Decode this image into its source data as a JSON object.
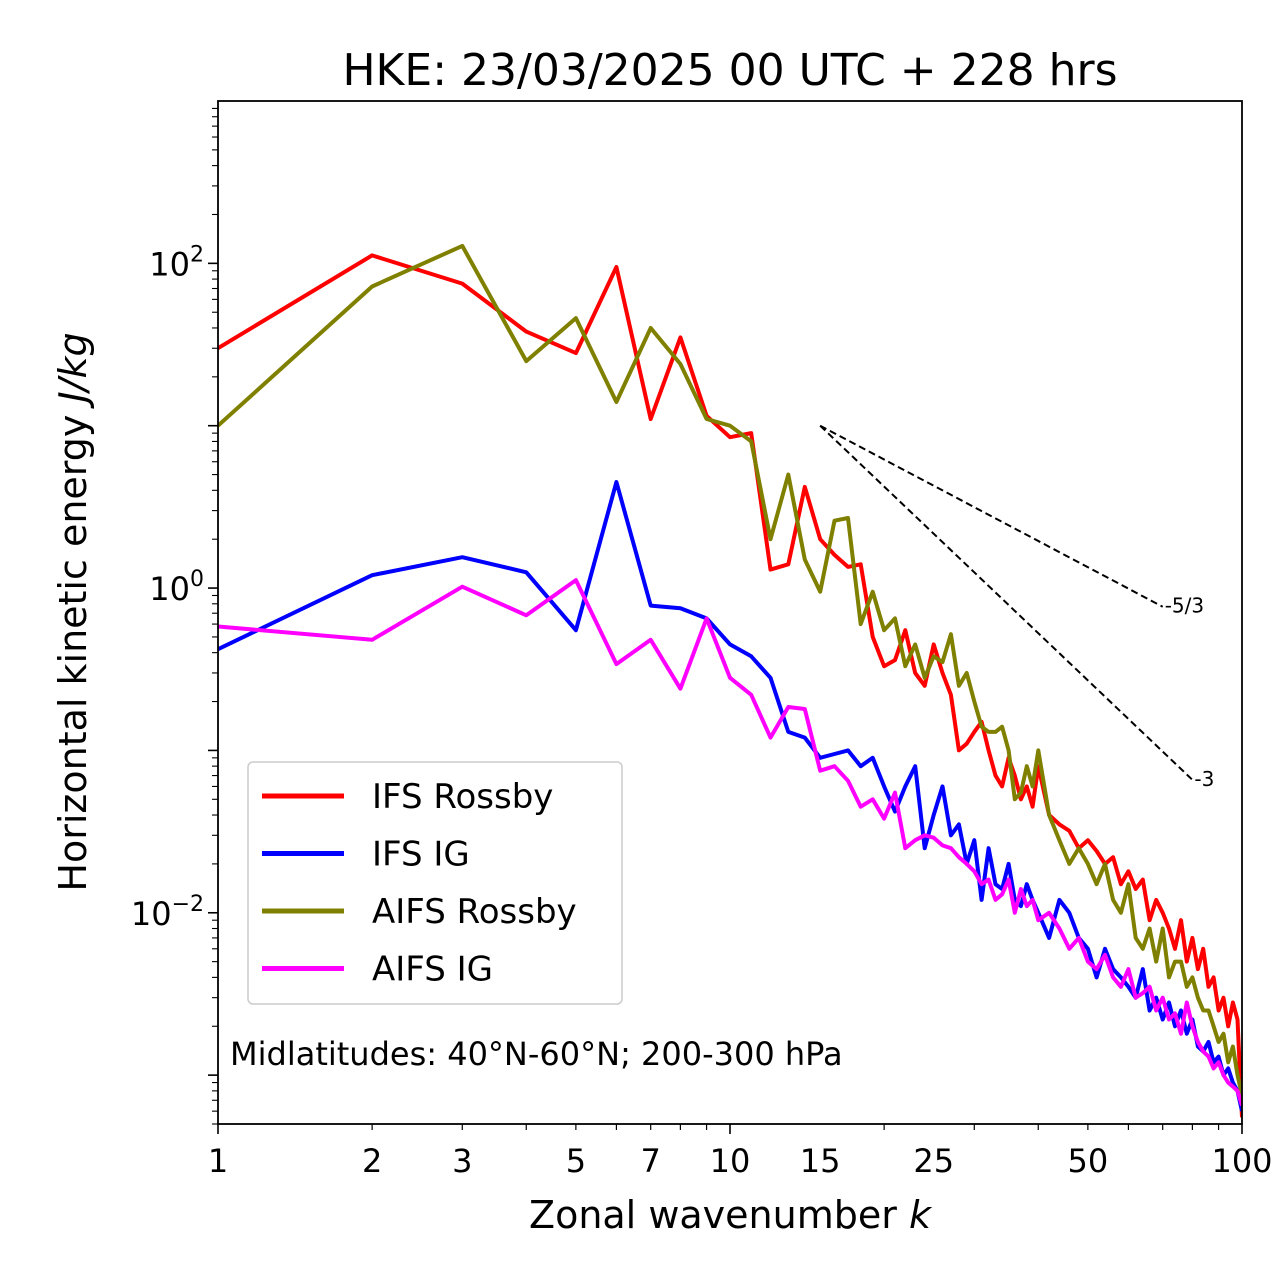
{
  "chart_data": {
    "type": "line",
    "title": "HKE: 23/03/2025 00 UTC + 228 hrs",
    "xlabel": "Zonal wavenumber k",
    "xlabel_main": "Zonal wavenumber ",
    "xlabel_var": "k",
    "ylabel_main": "Horizontal kinetic energy ",
    "ylabel_unit": "J/kg",
    "xscale": "log",
    "yscale": "log",
    "xlim": [
      1,
      100
    ],
    "ylim": [
      0.0005,
      1000
    ],
    "x_ticks": [
      1,
      2,
      3,
      5,
      7,
      10,
      15,
      25,
      50,
      100
    ],
    "x_tick_labels": [
      "1",
      "2",
      "3",
      "5",
      "7",
      "10",
      "15",
      "25",
      "50",
      "100"
    ],
    "y_ticks": [
      {
        "value": 100,
        "base": "10",
        "exp": "2"
      },
      {
        "value": 1,
        "base": "10",
        "exp": "0"
      },
      {
        "value": 0.01,
        "base": "10",
        "exp": "−2"
      }
    ],
    "annotation": "Midlatitudes: 40°N-60°N; 200-300 hPa",
    "legend_position": "lower-left",
    "reference_slopes": [
      {
        "label": "-5/3",
        "slope": -1.6667,
        "x_start": 15,
        "x_end": 70,
        "y_start": 10.0
      },
      {
        "label": "-3",
        "slope": -3,
        "x_start": 15,
        "x_end": 80,
        "y_start": 10.0
      }
    ],
    "series": [
      {
        "name": "IFS Rossby",
        "color": "#ff0000",
        "x": [
          1,
          2,
          3,
          4,
          5,
          6,
          7,
          8,
          9,
          10,
          11,
          12,
          13,
          14,
          15,
          16,
          17,
          18,
          19,
          20,
          21,
          22,
          23,
          24,
          25,
          26,
          27,
          28,
          29,
          30,
          31,
          32,
          33,
          34,
          35,
          36,
          37,
          38,
          39,
          40,
          42,
          44,
          46,
          48,
          50,
          52,
          54,
          56,
          58,
          60,
          62,
          64,
          66,
          68,
          70,
          72,
          74,
          76,
          78,
          80,
          82,
          84,
          86,
          88,
          90,
          92,
          94,
          96,
          98,
          100
        ],
        "y": [
          30,
          112,
          75,
          38,
          28,
          95,
          11,
          35,
          11.5,
          8.5,
          9,
          1.3,
          1.4,
          4.2,
          2,
          1.6,
          1.35,
          1.4,
          0.5,
          0.33,
          0.36,
          0.55,
          0.3,
          0.25,
          0.45,
          0.3,
          0.22,
          0.1,
          0.11,
          0.13,
          0.15,
          0.1,
          0.07,
          0.06,
          0.09,
          0.07,
          0.05,
          0.06,
          0.045,
          0.08,
          0.04,
          0.035,
          0.032,
          0.025,
          0.028,
          0.024,
          0.02,
          0.022,
          0.015,
          0.018,
          0.014,
          0.016,
          0.009,
          0.012,
          0.01,
          0.008,
          0.006,
          0.009,
          0.005,
          0.007,
          0.0045,
          0.006,
          0.0035,
          0.004,
          0.0025,
          0.003,
          0.002,
          0.0028,
          0.0022,
          0.00055
        ]
      },
      {
        "name": "IFS IG",
        "color": "#0000ff",
        "x": [
          1,
          2,
          3,
          4,
          5,
          6,
          7,
          8,
          9,
          10,
          11,
          12,
          13,
          14,
          15,
          16,
          17,
          18,
          19,
          20,
          21,
          22,
          23,
          24,
          25,
          26,
          27,
          28,
          29,
          30,
          31,
          32,
          33,
          34,
          35,
          36,
          37,
          38,
          39,
          40,
          42,
          44,
          46,
          48,
          50,
          52,
          54,
          56,
          58,
          60,
          62,
          64,
          66,
          68,
          70,
          72,
          74,
          76,
          78,
          80,
          82,
          84,
          86,
          88,
          90,
          92,
          94,
          96,
          98,
          100
        ],
        "y": [
          0.42,
          1.2,
          1.55,
          1.25,
          0.55,
          4.5,
          0.78,
          0.75,
          0.65,
          0.45,
          0.38,
          0.28,
          0.13,
          0.12,
          0.09,
          0.095,
          0.1,
          0.08,
          0.09,
          0.06,
          0.042,
          0.06,
          0.08,
          0.025,
          0.04,
          0.06,
          0.03,
          0.035,
          0.02,
          0.028,
          0.012,
          0.025,
          0.015,
          0.014,
          0.02,
          0.012,
          0.011,
          0.015,
          0.012,
          0.01,
          0.007,
          0.012,
          0.01,
          0.007,
          0.006,
          0.004,
          0.006,
          0.0045,
          0.004,
          0.0035,
          0.003,
          0.0045,
          0.0025,
          0.003,
          0.0022,
          0.0028,
          0.002,
          0.0025,
          0.0018,
          0.0022,
          0.0015,
          0.0014,
          0.0016,
          0.0012,
          0.0013,
          0.001,
          0.0011,
          0.0009,
          0.0008,
          0.0006
        ]
      },
      {
        "name": "AIFS Rossby",
        "color": "#808000",
        "x": [
          1,
          2,
          3,
          4,
          5,
          6,
          7,
          8,
          9,
          10,
          11,
          12,
          13,
          14,
          15,
          16,
          17,
          18,
          19,
          20,
          21,
          22,
          23,
          24,
          25,
          26,
          27,
          28,
          29,
          30,
          31,
          32,
          33,
          34,
          35,
          36,
          37,
          38,
          39,
          40,
          42,
          44,
          46,
          48,
          50,
          52,
          54,
          56,
          58,
          60,
          62,
          64,
          66,
          68,
          70,
          72,
          74,
          76,
          78,
          80,
          82,
          84,
          86,
          88,
          90,
          92,
          94,
          96,
          98,
          100
        ],
        "y": [
          10,
          72,
          128,
          25,
          46,
          14,
          40,
          24,
          11,
          10,
          8,
          2,
          5,
          1.5,
          0.95,
          2.6,
          2.7,
          0.6,
          0.95,
          0.55,
          0.65,
          0.33,
          0.45,
          0.28,
          0.38,
          0.35,
          0.52,
          0.25,
          0.3,
          0.2,
          0.14,
          0.13,
          0.13,
          0.14,
          0.1,
          0.05,
          0.055,
          0.08,
          0.06,
          0.1,
          0.04,
          0.028,
          0.02,
          0.025,
          0.02,
          0.015,
          0.02,
          0.012,
          0.01,
          0.015,
          0.007,
          0.006,
          0.008,
          0.005,
          0.008,
          0.004,
          0.005,
          0.005,
          0.0035,
          0.004,
          0.003,
          0.0025,
          0.0025,
          0.002,
          0.0016,
          0.0018,
          0.0012,
          0.0015,
          0.001,
          0.00075
        ]
      },
      {
        "name": "AIFS IG",
        "color": "#ff00ff",
        "x": [
          1,
          2,
          3,
          4,
          5,
          6,
          7,
          8,
          9,
          10,
          11,
          12,
          13,
          14,
          15,
          16,
          17,
          18,
          19,
          20,
          21,
          22,
          23,
          24,
          25,
          26,
          27,
          28,
          29,
          30,
          31,
          32,
          33,
          34,
          35,
          36,
          37,
          38,
          39,
          40,
          42,
          44,
          46,
          48,
          50,
          52,
          54,
          56,
          58,
          60,
          62,
          64,
          66,
          68,
          70,
          72,
          74,
          76,
          78,
          80,
          82,
          84,
          86,
          88,
          90,
          92,
          94,
          96,
          98,
          100
        ],
        "y": [
          0.58,
          0.48,
          1.02,
          0.68,
          1.12,
          0.34,
          0.48,
          0.24,
          0.65,
          0.28,
          0.22,
          0.12,
          0.185,
          0.18,
          0.075,
          0.08,
          0.065,
          0.045,
          0.05,
          0.038,
          0.055,
          0.025,
          0.028,
          0.03,
          0.029,
          0.026,
          0.025,
          0.022,
          0.02,
          0.018,
          0.015,
          0.016,
          0.012,
          0.013,
          0.016,
          0.01,
          0.014,
          0.011,
          0.012,
          0.009,
          0.01,
          0.008,
          0.006,
          0.007,
          0.005,
          0.0045,
          0.0055,
          0.004,
          0.0035,
          0.0045,
          0.003,
          0.0032,
          0.0035,
          0.0025,
          0.003,
          0.0022,
          0.0024,
          0.0018,
          0.0028,
          0.002,
          0.0016,
          0.0014,
          0.0013,
          0.0011,
          0.0012,
          0.001,
          0.0009,
          0.00085,
          0.0008,
          0.00065
        ]
      }
    ]
  }
}
